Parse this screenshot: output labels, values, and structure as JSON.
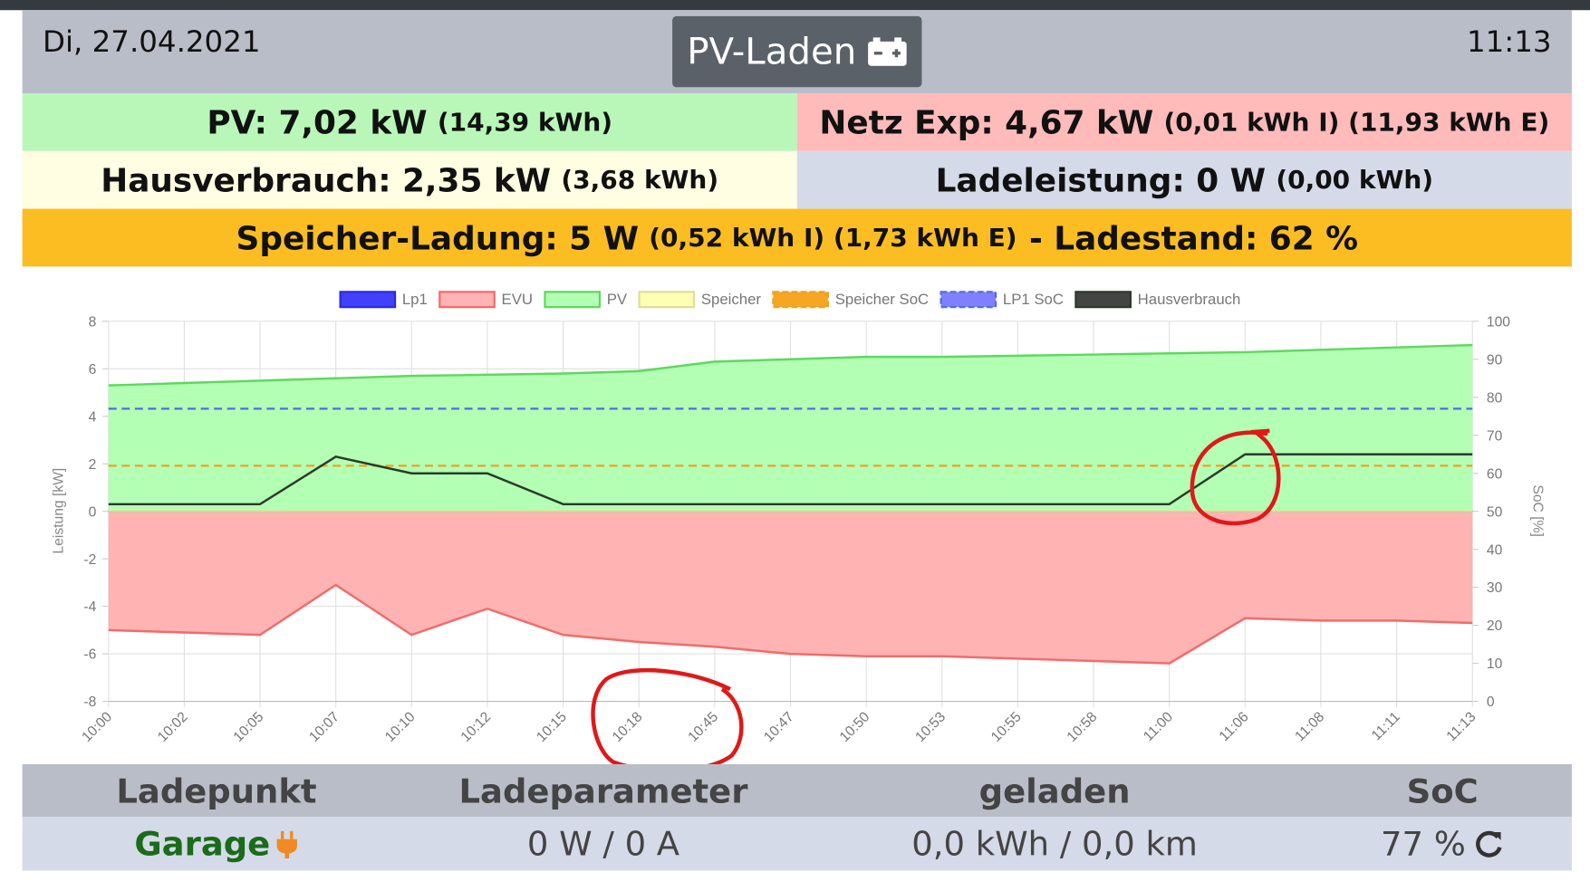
{
  "header": {
    "date": "Di, 27.04.2021",
    "button": "PV-Laden",
    "time": "11:13"
  },
  "status": {
    "pv": {
      "value": "PV: 7,02 kW",
      "detail": "(14,39 kWh)"
    },
    "grid": {
      "value": "Netz Exp: 4,67 kW",
      "detail": "(0,01 kWh I) (11,93 kWh E)"
    },
    "house": {
      "value": "Hausverbrauch: 2,35 kW",
      "detail": "(3,68 kWh)"
    },
    "charge": {
      "value": "Ladeleistung: 0 W",
      "detail": "(0,00 kWh)"
    },
    "storage": {
      "value": "Speicher-Ladung: 5 W",
      "detail": "(0,52 kWh I) (1,73 kWh E)",
      "soc": "- Ladestand: 62 %"
    }
  },
  "chart_data": {
    "type": "line",
    "ylabel": "Leistung [kW]",
    "y2label": "SoC [%]",
    "categories": [
      "10:00",
      "10:02",
      "10:05",
      "10:07",
      "10:10",
      "10:12",
      "10:15",
      "10:18",
      "10:45",
      "10:47",
      "10:50",
      "10:53",
      "10:55",
      "10:58",
      "11:00",
      "11:06",
      "11:08",
      "11:11",
      "11:13"
    ],
    "ylim": [
      -8,
      8
    ],
    "yticks": [
      -8,
      -6,
      -4,
      -2,
      0,
      2,
      4,
      6,
      8
    ],
    "y2lim": [
      0,
      100
    ],
    "y2ticks": [
      0,
      10,
      20,
      30,
      40,
      50,
      60,
      70,
      80,
      90,
      100
    ],
    "grid": true,
    "legend": "top",
    "series": [
      {
        "name": "Lp1",
        "color": "#2b2be0",
        "fill": "#4040ff",
        "values": [
          0,
          0,
          0,
          0,
          0,
          0,
          0,
          0,
          0,
          0,
          0,
          0,
          0,
          0,
          0,
          0,
          0,
          0,
          0
        ]
      },
      {
        "name": "EVU",
        "color": "#f26b6b",
        "fill": "#ffb3b3",
        "area": true,
        "values": [
          -5.0,
          -5.1,
          -5.2,
          -3.1,
          -5.2,
          -4.1,
          -5.2,
          -5.5,
          -5.7,
          -6.0,
          -6.1,
          -6.1,
          -6.2,
          -6.3,
          -6.4,
          -4.5,
          -4.6,
          -4.6,
          -4.7
        ]
      },
      {
        "name": "PV",
        "color": "#5fd85f",
        "fill": "#b3ffb3",
        "area": true,
        "values": [
          5.3,
          5.4,
          5.5,
          5.6,
          5.7,
          5.75,
          5.8,
          5.9,
          6.3,
          6.4,
          6.5,
          6.5,
          6.55,
          6.6,
          6.65,
          6.7,
          6.8,
          6.9,
          7.0
        ]
      },
      {
        "name": "Speicher",
        "color": "#dede9a",
        "fill": "#ffffb3",
        "area": true,
        "values": [
          0,
          0,
          0,
          0,
          0,
          0,
          0,
          0,
          0,
          0,
          0,
          0,
          0,
          0,
          0,
          0,
          0,
          0,
          0
        ]
      },
      {
        "name": "Speicher SoC",
        "color": "#f0a020",
        "fill": "#f5a623",
        "dashed": true,
        "axis": "y2",
        "values": [
          62,
          62,
          62,
          62,
          62,
          62,
          62,
          62,
          62,
          62,
          62,
          62,
          62,
          62,
          62,
          62,
          62,
          62,
          62
        ]
      },
      {
        "name": "LP1 SoC",
        "color": "#4a6fe3",
        "fill": "#8080ff",
        "dashed": true,
        "axis": "y2",
        "values": [
          77,
          77,
          77,
          77,
          77,
          77,
          77,
          77,
          77,
          77,
          77,
          77,
          77,
          77,
          77,
          77,
          77,
          77,
          77
        ]
      },
      {
        "name": "Hausverbrauch",
        "color": "#2a3a2a",
        "fill": "#444444",
        "values": [
          0.3,
          0.3,
          0.3,
          2.3,
          1.6,
          1.6,
          0.3,
          0.3,
          0.3,
          0.3,
          0.3,
          0.3,
          0.3,
          0.3,
          0.3,
          2.4,
          2.4,
          2.4,
          2.4
        ]
      }
    ]
  },
  "table": {
    "headers": [
      "Ladepunkt",
      "Ladeparameter",
      "geladen",
      "SoC"
    ],
    "rows": [
      [
        "Garage",
        "0 W / 0 A",
        "0,0 kWh / 0,0 km",
        "77 %"
      ]
    ]
  }
}
